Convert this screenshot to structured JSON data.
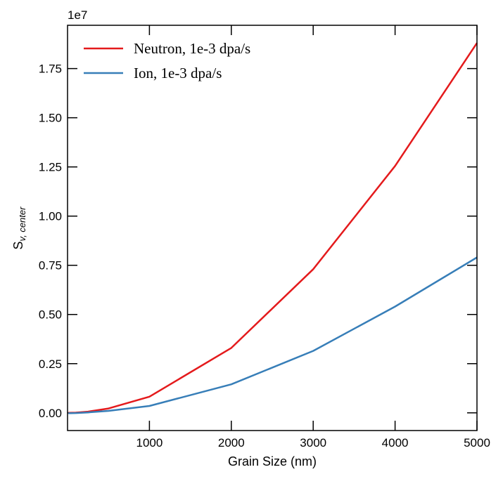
{
  "chart_data": {
    "type": "line",
    "xlabel": "Grain Size (nm)",
    "ylabel_main": "S",
    "ylabel_sub": "v, center",
    "y_offset_label": "1e7",
    "xlim": [
      0,
      5000
    ],
    "ylim": [
      -0.09,
      1.97
    ],
    "x_ticks": [
      1000,
      2000,
      3000,
      4000,
      5000
    ],
    "x_tick_labels": [
      "1000",
      "2000",
      "3000",
      "4000",
      "5000"
    ],
    "y_ticks": [
      0,
      0.25,
      0.5,
      0.75,
      1.0,
      1.25,
      1.5,
      1.75
    ],
    "y_tick_labels": [
      "0.00",
      "0.25",
      "0.50",
      "0.75",
      "1.00",
      "1.25",
      "1.50",
      "1.75"
    ],
    "legend_position": "top-left",
    "grid": false,
    "series": [
      {
        "name": "Neutron, 1e-3 dpa/s",
        "color": "#e41a1c",
        "x": [
          10,
          100,
          250,
          500,
          1000,
          2000,
          3000,
          4000,
          5000
        ],
        "y": [
          0.0002,
          0.001,
          0.006,
          0.022,
          0.082,
          0.33,
          0.73,
          1.255,
          1.88
        ]
      },
      {
        "name": "Ion, 1e-3 dpa/s",
        "color": "#377eb8",
        "x": [
          10,
          100,
          250,
          500,
          1000,
          2000,
          3000,
          4000,
          5000
        ],
        "y": [
          -0.002,
          -0.001,
          0.002,
          0.01,
          0.035,
          0.145,
          0.315,
          0.54,
          0.79
        ]
      }
    ]
  }
}
